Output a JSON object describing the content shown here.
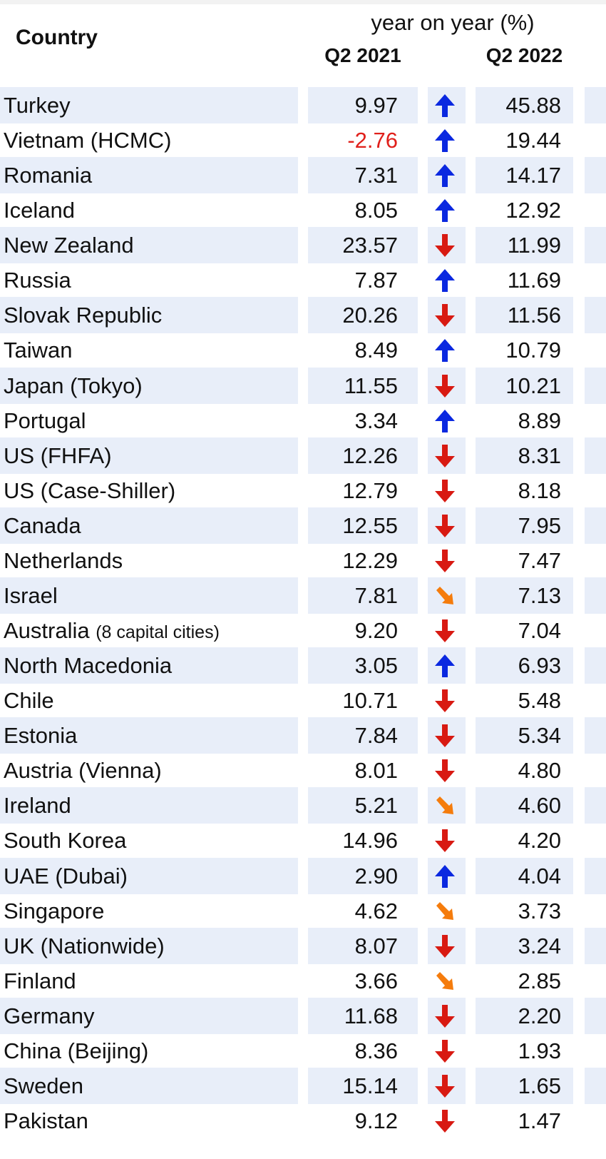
{
  "header": {
    "country": "Country",
    "group": "year on year (%)",
    "col1": "Q2 2021",
    "col2": "Q2 2022"
  },
  "rows": [
    {
      "country": "Turkey",
      "q2_2021": "9.97",
      "trend": "up",
      "q2_2022": "45.88"
    },
    {
      "country": "Vietnam (HCMC)",
      "q2_2021": "-2.76",
      "trend": "up",
      "q2_2022": "19.44"
    },
    {
      "country": "Romania",
      "q2_2021": "7.31",
      "trend": "up",
      "q2_2022": "14.17"
    },
    {
      "country": "Iceland",
      "q2_2021": "8.05",
      "trend": "up",
      "q2_2022": "12.92"
    },
    {
      "country": "New Zealand",
      "q2_2021": "23.57",
      "trend": "down",
      "q2_2022": "11.99"
    },
    {
      "country": "Russia",
      "q2_2021": "7.87",
      "trend": "up",
      "q2_2022": "11.69"
    },
    {
      "country": "Slovak Republic",
      "q2_2021": "20.26",
      "trend": "down",
      "q2_2022": "11.56"
    },
    {
      "country": "Taiwan",
      "q2_2021": "8.49",
      "trend": "up",
      "q2_2022": "10.79"
    },
    {
      "country": "Japan (Tokyo)",
      "q2_2021": "11.55",
      "trend": "down",
      "q2_2022": "10.21"
    },
    {
      "country": "Portugal",
      "q2_2021": "3.34",
      "trend": "up",
      "q2_2022": "8.89"
    },
    {
      "country": "US (FHFA)",
      "q2_2021": "12.26",
      "trend": "down",
      "q2_2022": "8.31"
    },
    {
      "country": "US (Case-Shiller)",
      "q2_2021": "12.79",
      "trend": "down",
      "q2_2022": "8.18"
    },
    {
      "country": "Canada",
      "q2_2021": "12.55",
      "trend": "down",
      "q2_2022": "7.95"
    },
    {
      "country": "Netherlands",
      "q2_2021": "12.29",
      "trend": "down",
      "q2_2022": "7.47"
    },
    {
      "country": "Israel",
      "q2_2021": "7.81",
      "trend": "slight-down",
      "q2_2022": "7.13"
    },
    {
      "country": "Australia",
      "note": "(8 capital cities)",
      "q2_2021": "9.20",
      "trend": "down",
      "q2_2022": "7.04"
    },
    {
      "country": "North Macedonia",
      "q2_2021": "3.05",
      "trend": "up",
      "q2_2022": "6.93"
    },
    {
      "country": "Chile",
      "q2_2021": "10.71",
      "trend": "down",
      "q2_2022": "5.48"
    },
    {
      "country": "Estonia",
      "q2_2021": "7.84",
      "trend": "down",
      "q2_2022": "5.34"
    },
    {
      "country": "Austria (Vienna)",
      "q2_2021": "8.01",
      "trend": "down",
      "q2_2022": "4.80"
    },
    {
      "country": "Ireland",
      "q2_2021": "5.21",
      "trend": "slight-down",
      "q2_2022": "4.60"
    },
    {
      "country": "South Korea",
      "q2_2021": "14.96",
      "trend": "down",
      "q2_2022": "4.20"
    },
    {
      "country": "UAE (Dubai)",
      "q2_2021": "2.90",
      "trend": "up",
      "q2_2022": "4.04"
    },
    {
      "country": "Singapore",
      "q2_2021": "4.62",
      "trend": "slight-down",
      "q2_2022": "3.73"
    },
    {
      "country": "UK (Nationwide)",
      "q2_2021": "8.07",
      "trend": "down",
      "q2_2022": "3.24"
    },
    {
      "country": "Finland",
      "q2_2021": "3.66",
      "trend": "slight-down",
      "q2_2022": "2.85"
    },
    {
      "country": "Germany",
      "q2_2021": "11.68",
      "trend": "down",
      "q2_2022": "2.20"
    },
    {
      "country": "China (Beijing)",
      "q2_2021": "8.36",
      "trend": "down",
      "q2_2022": "1.93"
    },
    {
      "country": "Sweden",
      "q2_2021": "15.14",
      "trend": "down",
      "q2_2022": "1.65"
    },
    {
      "country": "Pakistan",
      "q2_2021": "9.12",
      "trend": "down",
      "q2_2022": "1.47"
    }
  ]
}
